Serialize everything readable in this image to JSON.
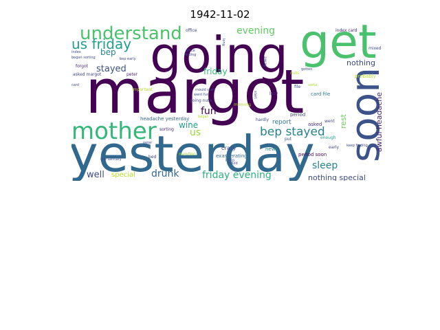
{
  "title": "1942-11-02",
  "words": [
    {
      "text": "margot",
      "color": "#440154"
    },
    {
      "text": "yesterday",
      "color": "#31688e"
    },
    {
      "text": "going",
      "color": "#440154"
    },
    {
      "text": "get",
      "color": "#4ac16d"
    },
    {
      "text": "soon",
      "color": "#3b528b"
    },
    {
      "text": "mother",
      "color": "#35b779"
    },
    {
      "text": "understand",
      "color": "#4ac16d"
    },
    {
      "text": "us friday",
      "color": "#1f9e89"
    },
    {
      "text": "bep stayed",
      "color": "#26828e"
    },
    {
      "text": "friday evening",
      "color": "#2db27d"
    },
    {
      "text": "evening",
      "color": "#5ec962"
    },
    {
      "text": "sleep",
      "color": "#26828e"
    },
    {
      "text": "awful headache",
      "color": "#482878"
    },
    {
      "text": "nothing special",
      "color": "#3e4989"
    },
    {
      "text": "nothing",
      "color": "#3e4989"
    },
    {
      "text": "well",
      "color": "#3e4989"
    },
    {
      "text": "drunk",
      "color": "#31688e"
    },
    {
      "text": "special",
      "color": "#b5de2b"
    },
    {
      "text": "stayed",
      "color": "#3b528b"
    },
    {
      "text": "bep",
      "color": "#26828e"
    },
    {
      "text": "fun",
      "color": "#440154"
    },
    {
      "text": "wine",
      "color": "#1f9e89"
    },
    {
      "text": "us",
      "color": "#a0da39"
    },
    {
      "text": "friday",
      "color": "#35b779"
    },
    {
      "text": "report",
      "color": "#2a788e"
    },
    {
      "text": "rest",
      "color": "#6ece58"
    },
    {
      "text": "crazy",
      "color": "#3e4989"
    },
    {
      "text": "headache yesterday",
      "color": "#31688e"
    },
    {
      "text": "index card",
      "color": "#482878"
    },
    {
      "text": "card file",
      "color": "#2a788e"
    },
    {
      "text": "probably",
      "color": "#b5de2b"
    },
    {
      "text": "period",
      "color": "#3e4989"
    },
    {
      "text": "asked",
      "color": "#482878"
    },
    {
      "text": "hardly",
      "color": "#3e4989"
    },
    {
      "text": "exasperating",
      "color": "#31688e"
    },
    {
      "text": "news",
      "color": "#26828e"
    },
    {
      "text": "early",
      "color": "#3e4989"
    },
    {
      "text": "enough",
      "color": "#1f9e89"
    },
    {
      "text": "period soon",
      "color": "#440154"
    },
    {
      "text": "bed",
      "color": "#3e4989"
    },
    {
      "text": "mention",
      "color": "#a0da39"
    },
    {
      "text": "sorting",
      "color": "#482878"
    },
    {
      "text": "morning",
      "color": "#b5de2b"
    },
    {
      "text": "help",
      "color": "#3b528b"
    },
    {
      "text": "lazy",
      "color": "#482878"
    },
    {
      "text": "file",
      "color": "#3e4989"
    },
    {
      "text": "nuts",
      "color": "#b5de2b"
    },
    {
      "text": "went",
      "color": "#3e4989"
    },
    {
      "text": "put",
      "color": "#3e4989"
    },
    {
      "text": "peter",
      "color": "#482878"
    },
    {
      "text": "forgot",
      "color": "#482878"
    },
    {
      "text": "asked margot",
      "color": "#3e4989"
    },
    {
      "text": "began sorting",
      "color": "#3e4989"
    },
    {
      "text": "bep early",
      "color": "#3e4989"
    },
    {
      "text": "index",
      "color": "#3e4989"
    },
    {
      "text": "office",
      "color": "#3e4989"
    },
    {
      "text": "away",
      "color": "#3e4989"
    },
    {
      "text": "mixed",
      "color": "#3e4989"
    },
    {
      "text": "mould",
      "color": "#3e4989"
    },
    {
      "text": "keep finding",
      "color": "#3e4989"
    },
    {
      "text": "use sanitary",
      "color": "#3e4989"
    },
    {
      "text": "start",
      "color": "#3e4989"
    },
    {
      "text": "important",
      "color": "#b5de2b"
    },
    {
      "text": "going nuts",
      "color": "#3e4989"
    },
    {
      "text": "gotten",
      "color": "#3e4989"
    },
    {
      "text": "long",
      "color": "#3e4989"
    },
    {
      "text": "mould start",
      "color": "#3e4989"
    },
    {
      "text": "went fun",
      "color": "#3e4989"
    },
    {
      "text": "began",
      "color": "#b5de2b"
    },
    {
      "text": "card",
      "color": "#3e4989"
    },
    {
      "text": "awful",
      "color": "#b5de2b"
    },
    {
      "text": "finding",
      "color": "#3e4989"
    },
    {
      "text": "peter",
      "color": "#3e4989"
    },
    {
      "text": "office",
      "color": "#3e4989"
    }
  ]
}
